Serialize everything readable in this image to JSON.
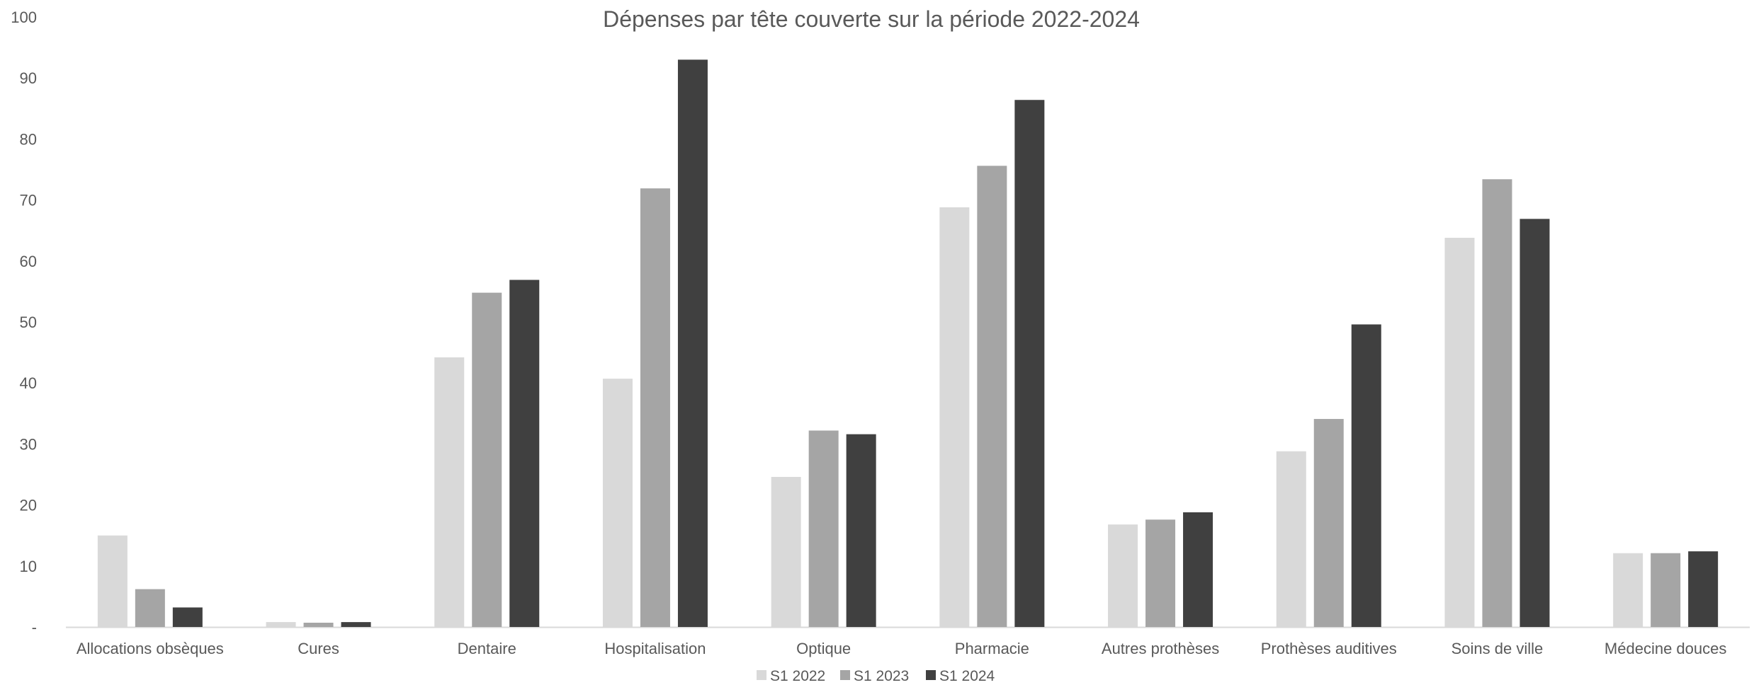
{
  "chart_data": {
    "type": "bar",
    "title": "Dépenses par tête couverte sur la période 2022-2024",
    "xlabel": "",
    "ylabel": "",
    "ylim": [
      0,
      100
    ],
    "y_ticks": [
      "-",
      "10",
      "20",
      "30",
      "40",
      "50",
      "60",
      "70",
      "80",
      "90",
      "100"
    ],
    "grid": false,
    "legend_position": "bottom",
    "categories": [
      "Allocations obsèques",
      "Cures",
      "Dentaire",
      "Hospitalisation",
      "Optique",
      "Pharmacie",
      "Autres prothèses",
      "Prothèses auditives",
      "Soins de ville",
      "Médecine douces"
    ],
    "series": [
      {
        "name": "S1 2022",
        "color": "#d9d9d9",
        "values": [
          15.0,
          0.8,
          44.2,
          40.7,
          24.6,
          68.8,
          16.8,
          28.8,
          63.8,
          12.1
        ]
      },
      {
        "name": "S1 2023",
        "color": "#a5a5a5",
        "values": [
          6.2,
          0.7,
          54.8,
          71.9,
          32.2,
          75.6,
          17.6,
          34.1,
          73.4,
          12.1
        ]
      },
      {
        "name": "S1 2024",
        "color": "#404040",
        "values": [
          3.2,
          0.8,
          56.9,
          93.0,
          31.6,
          86.4,
          18.8,
          49.6,
          66.9,
          12.4
        ]
      }
    ]
  }
}
